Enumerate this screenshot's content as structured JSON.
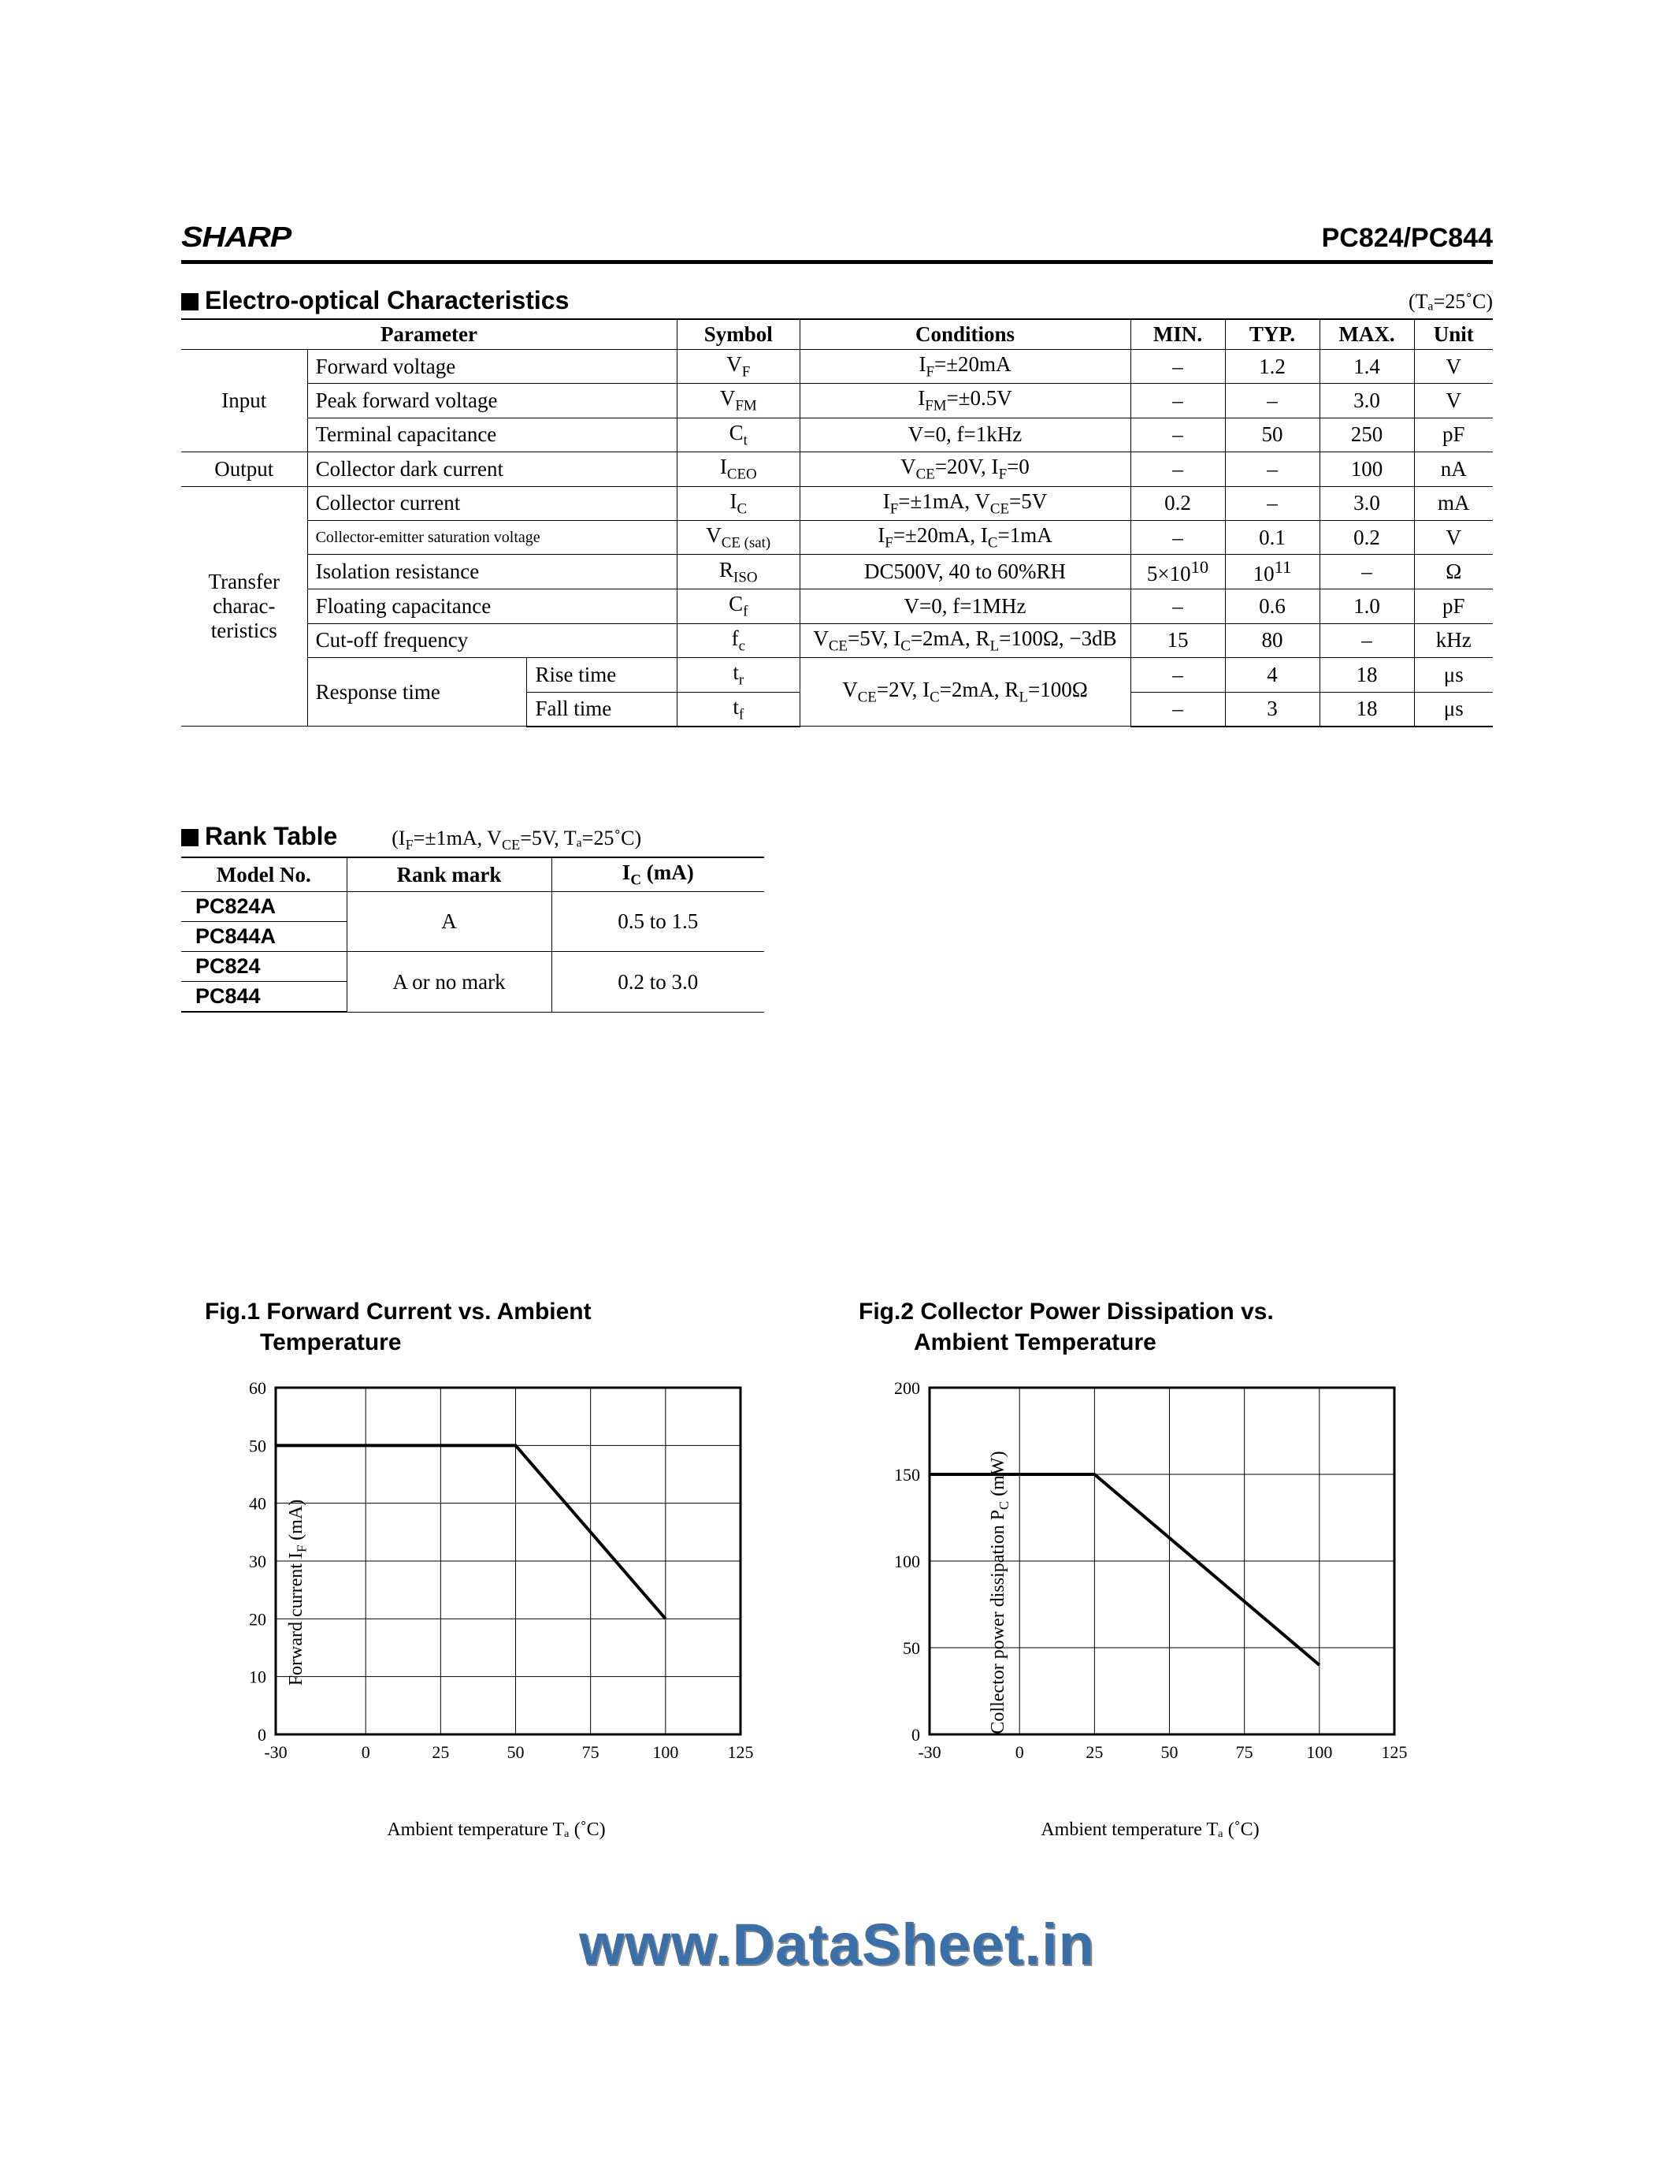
{
  "header": {
    "brand": "SHARP",
    "part_number": "PC824/PC844"
  },
  "characteristics": {
    "title": "Electro-optical Characteristics",
    "temp_note": "(Tₐ=25˚C)",
    "columns": [
      "Parameter",
      "Symbol",
      "Conditions",
      "MIN.",
      "TYP.",
      "MAX.",
      "Unit"
    ],
    "categories": {
      "input": "Input",
      "output": "Output",
      "transfer": "Transfer charac-teristics"
    },
    "rows": [
      {
        "cat": "input",
        "param": "Forward voltage",
        "symbol": "V_F",
        "cond": "I_F=±20mA",
        "min": "–",
        "typ": "1.2",
        "max": "1.4",
        "unit": "V"
      },
      {
        "cat": "input",
        "param": "Peak forward voltage",
        "symbol": "V_FM",
        "cond": "I_FM=±0.5V",
        "min": "–",
        "typ": "–",
        "max": "3.0",
        "unit": "V"
      },
      {
        "cat": "input",
        "param": "Terminal capacitance",
        "symbol": "C_t",
        "cond": "V=0, f=1kHz",
        "min": "–",
        "typ": "50",
        "max": "250",
        "unit": "pF"
      },
      {
        "cat": "output",
        "param": "Collector dark current",
        "symbol": "I_CEO",
        "cond": "V_CE=20V, I_F=0",
        "min": "–",
        "typ": "–",
        "max": "100",
        "unit": "nA"
      },
      {
        "cat": "transfer",
        "param": "Collector current",
        "symbol": "I_C",
        "cond": "I_F=±1mA, V_CE=5V",
        "min": "0.2",
        "typ": "–",
        "max": "3.0",
        "unit": "mA"
      },
      {
        "cat": "transfer",
        "param": "Collector-emitter saturation voltage",
        "symbol": "V_CE (sat)",
        "cond": "I_F=±20mA, I_C=1mA",
        "min": "–",
        "typ": "0.1",
        "max": "0.2",
        "unit": "V"
      },
      {
        "cat": "transfer",
        "param": "Isolation resistance",
        "symbol": "R_ISO",
        "cond": "DC500V, 40 to 60%RH",
        "min": "5×10^10",
        "typ": "10^11",
        "max": "–",
        "unit": "Ω"
      },
      {
        "cat": "transfer",
        "param": "Floating capacitance",
        "symbol": "C_f",
        "cond": "V=0, f=1MHz",
        "min": "–",
        "typ": "0.6",
        "max": "1.0",
        "unit": "pF"
      },
      {
        "cat": "transfer",
        "param": "Cut-off frequency",
        "symbol": "f_c",
        "cond": "V_CE=5V, I_C=2mA, R_L=100Ω, −3dB",
        "min": "15",
        "typ": "80",
        "max": "–",
        "unit": "kHz"
      },
      {
        "cat": "transfer",
        "param": "Response time",
        "sub": "Rise time",
        "symbol": "t_r",
        "cond": "V_CE=2V, I_C=2mA, R_L=100Ω",
        "min": "–",
        "typ": "4",
        "max": "18",
        "unit": "μs"
      },
      {
        "cat": "transfer",
        "param": "",
        "sub": "Fall time",
        "symbol": "t_f",
        "cond": "",
        "min": "–",
        "typ": "3",
        "max": "18",
        "unit": "μs"
      }
    ]
  },
  "rank_table": {
    "title": "Rank Table",
    "cond": "(I_F=±1mA, V_CE=5V, Tₐ=25˚C)",
    "columns": [
      "Model No.",
      "Rank mark",
      "I_C (mA)"
    ],
    "rows": [
      {
        "model": "PC824A",
        "mark": "A",
        "ic": "0.5 to 1.5"
      },
      {
        "model": "PC844A",
        "mark": "",
        "ic": ""
      },
      {
        "model": "PC824",
        "mark": "A or no mark",
        "ic": "0.2 to 3.0"
      },
      {
        "model": "PC844",
        "mark": "",
        "ic": ""
      }
    ],
    "merges": [
      [
        0,
        1
      ],
      [
        2,
        3
      ]
    ]
  },
  "fig1": {
    "title_line1": "Fig.1 Forward Current vs. Ambient",
    "title_line2": "Temperature",
    "ylabel": "Forward current I_F (mA)",
    "xlabel": "Ambient temperature Tₐ (˚C)",
    "xlim": [
      -30,
      125
    ],
    "ylim": [
      0,
      60
    ],
    "xticks": [
      -30,
      0,
      25,
      50,
      75,
      100,
      125
    ],
    "yticks": [
      0,
      10,
      20,
      30,
      40,
      50,
      60
    ],
    "line": [
      [
        -30,
        50
      ],
      [
        50,
        50
      ],
      [
        100,
        20
      ]
    ],
    "line_width": 4,
    "grid_color": "#000000",
    "background": "#ffffff"
  },
  "fig2": {
    "title_line1": "Fig.2 Collector Power Dissipation  vs.",
    "title_line2": "Ambient Temperature",
    "ylabel": "Collector power dissipation P_C (mW)",
    "xlabel": "Ambient temperature Tₐ (˚C)",
    "xlim": [
      -30,
      125
    ],
    "ylim": [
      0,
      200
    ],
    "xticks": [
      -30,
      0,
      25,
      50,
      75,
      100,
      125
    ],
    "yticks": [
      0,
      50,
      100,
      150,
      200
    ],
    "line": [
      [
        -30,
        150
      ],
      [
        25,
        150
      ],
      [
        100,
        40
      ]
    ],
    "line_width": 4,
    "grid_color": "#000000",
    "background": "#ffffff"
  },
  "watermark": "www.DataSheet.in"
}
